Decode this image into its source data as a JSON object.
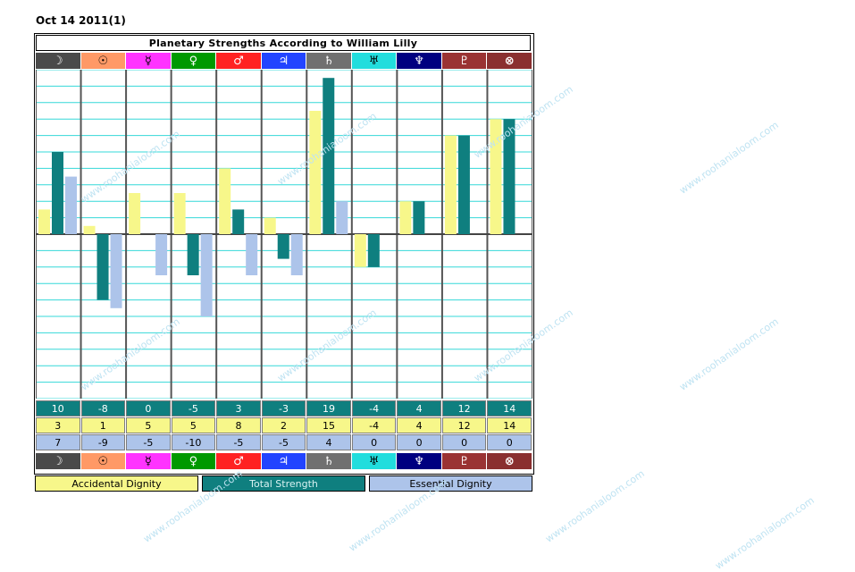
{
  "date": "Oct 14 2011(1)",
  "title": "Planetary Strengths According to William Lilly",
  "watermark": "www.roohanialoom.com",
  "legend": {
    "accidental": "Accidental Dignity",
    "total": "Total Strength",
    "essential": "Essential Dignity"
  },
  "colors": {
    "accidental": "#f7f78a",
    "total": "#0f7f7f",
    "essential": "#adc4ea",
    "gridline": "#35d8d8"
  },
  "planets": [
    {
      "glyph": "☽",
      "bg": "#4a4a4a",
      "fg": "#ffffff"
    },
    {
      "glyph": "☉",
      "bg": "#ff9966",
      "fg": "#000000"
    },
    {
      "glyph": "☿",
      "bg": "#ff33ff",
      "fg": "#000000"
    },
    {
      "glyph": "♀",
      "bg": "#009900",
      "fg": "#ffffff"
    },
    {
      "glyph": "♂",
      "bg": "#ff2222",
      "fg": "#ffffff"
    },
    {
      "glyph": "♃",
      "bg": "#2244ff",
      "fg": "#ffffff"
    },
    {
      "glyph": "♄",
      "bg": "#707070",
      "fg": "#ffffff"
    },
    {
      "glyph": "♅",
      "bg": "#22dddd",
      "fg": "#000000"
    },
    {
      "glyph": "♆",
      "bg": "#000080",
      "fg": "#ffffff"
    },
    {
      "glyph": "♇",
      "bg": "#9a3333",
      "fg": "#ffffff"
    },
    {
      "glyph": "⊗",
      "bg": "#8a3030",
      "fg": "#ffffff"
    }
  ],
  "chart_data": {
    "type": "bar",
    "categories": [
      "☽",
      "☉",
      "☿",
      "♀",
      "♂",
      "♃",
      "♄",
      "♅",
      "♆",
      "♇",
      "⊗"
    ],
    "series": [
      {
        "name": "Accidental Dignity",
        "values": [
          3,
          1,
          5,
          5,
          8,
          2,
          15,
          -4,
          4,
          12,
          14
        ]
      },
      {
        "name": "Total Strength",
        "values": [
          10,
          -8,
          0,
          -5,
          3,
          -3,
          19,
          -4,
          4,
          12,
          14
        ]
      },
      {
        "name": "Essential Dignity",
        "values": [
          7,
          -9,
          -5,
          -10,
          -5,
          -5,
          4,
          0,
          0,
          0,
          0
        ]
      }
    ],
    "ylim": [
      -20,
      20
    ],
    "grid": true,
    "legend_placement": "bottom"
  },
  "rows": {
    "total": [
      "10",
      "-8",
      "0",
      "-5",
      "3",
      "-3",
      "19",
      "-4",
      "4",
      "12",
      "14"
    ],
    "accidental": [
      "3",
      "1",
      "5",
      "5",
      "8",
      "2",
      "15",
      "-4",
      "4",
      "12",
      "14"
    ],
    "essential": [
      "7",
      "-9",
      "-5",
      "-10",
      "-5",
      "-5",
      "4",
      "0",
      "0",
      "0",
      "0"
    ]
  }
}
